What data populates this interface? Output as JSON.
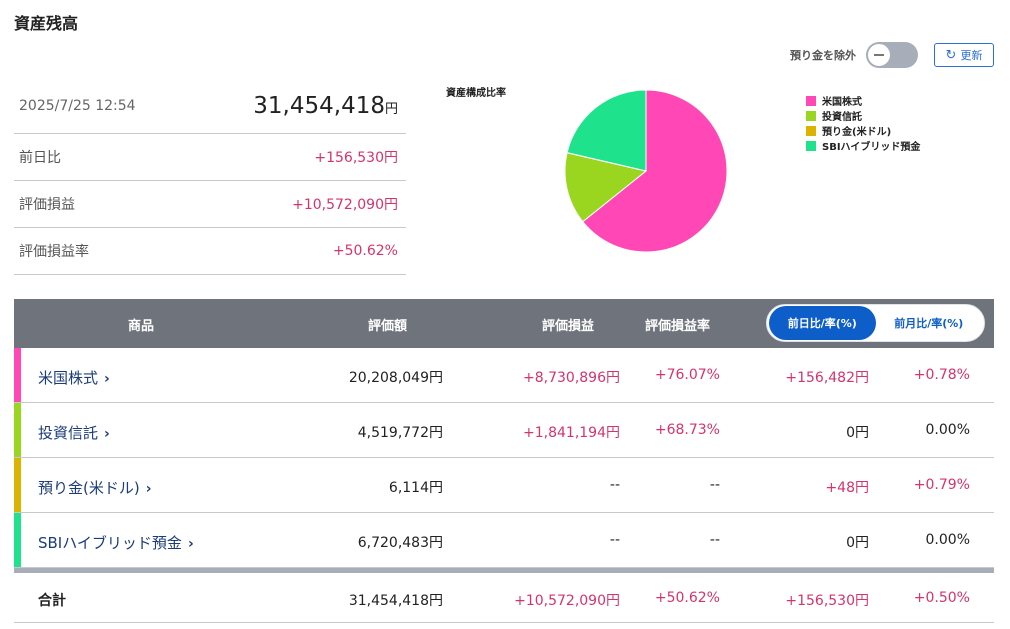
{
  "page": {
    "title": "資産残高"
  },
  "controls": {
    "deposit_toggle_label": "預り金を除外",
    "refresh_label": "更新"
  },
  "summary": {
    "datetime": "2025/7/25 12:54",
    "total_value": "31,454,418",
    "total_unit": "円",
    "rows": [
      {
        "label": "前日比",
        "value": "+156,530円"
      },
      {
        "label": "評価損益",
        "value": "+10,572,090円"
      },
      {
        "label": "評価損益率",
        "value": "+50.62%"
      }
    ]
  },
  "chart_data": {
    "type": "pie",
    "title": "資産構成比率",
    "labels": [
      "米国株式",
      "投資信託",
      "預り金(米ドル)",
      "SBIハイブリッド預金"
    ],
    "values": [
      20208049,
      4519772,
      6114,
      6720483
    ],
    "colors": [
      "#ff47b6",
      "#9ad61f",
      "#dcb400",
      "#1fe38c"
    ],
    "legend": "right"
  },
  "table": {
    "headers": {
      "product": "商品",
      "value": "評価額",
      "pl": "評価損益",
      "pl_rate": "評価損益率"
    },
    "toggle": {
      "daily": "前日比/率(%)",
      "monthly": "前月比/率(%)"
    },
    "rows": [
      {
        "name": "米国株式",
        "value": "20,208,049円",
        "pl": "+8,730,896円",
        "pl_rate": "+76.07%",
        "diff": "+156,482円",
        "diff_rate": "+0.78%",
        "color": "#ff47b6"
      },
      {
        "name": "投資信託",
        "value": "4,519,772円",
        "pl": "+1,841,194円",
        "pl_rate": "+68.73%",
        "diff": "0円",
        "diff_rate": "0.00%",
        "color": "#9ad61f"
      },
      {
        "name": "預り金(米ドル)",
        "value": "6,114円",
        "pl": "--",
        "pl_rate": "--",
        "diff": "+48円",
        "diff_rate": "+0.79%",
        "color": "#dcb400"
      },
      {
        "name": "SBIハイブリッド預金",
        "value": "6,720,483円",
        "pl": "--",
        "pl_rate": "--",
        "diff": "0円",
        "diff_rate": "0.00%",
        "color": "#1fe38c"
      }
    ],
    "total": {
      "name": "合計",
      "value": "31,454,418円",
      "pl": "+10,572,090円",
      "pl_rate": "+50.62%",
      "diff": "+156,530円",
      "diff_rate": "+0.50%"
    }
  }
}
